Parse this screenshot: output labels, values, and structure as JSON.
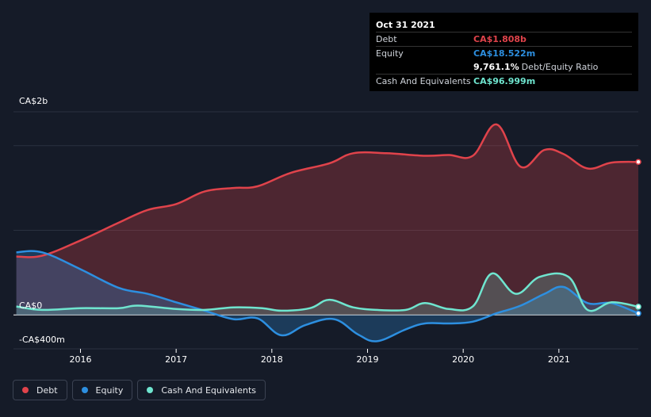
{
  "tooltip": {
    "date": "Oct 31 2021",
    "debt_label": "Debt",
    "debt_value": "CA$1.808b",
    "equity_label": "Equity",
    "equity_value": "CA$18.522m",
    "ratio_value": "9,761.1%",
    "ratio_label": "Debt/Equity Ratio",
    "cash_label": "Cash And Equivalents",
    "cash_value": "CA$96.999m"
  },
  "legend": [
    {
      "label": "Debt",
      "color": "#e0434b"
    },
    {
      "label": "Equity",
      "color": "#2d8fe0"
    },
    {
      "label": "Cash And Equivalents",
      "color": "#6fe5cf"
    }
  ],
  "chart_data": {
    "type": "area",
    "y_tick_labels": [
      "CA$2b",
      "CA$0",
      "-CA$400m"
    ],
    "y_ticks": [
      2000,
      0,
      -400
    ],
    "ylim": [
      -400,
      2400
    ],
    "xlim": [
      2015.3,
      2021.83
    ],
    "x_tick_labels": [
      "2016",
      "2017",
      "2018",
      "2019",
      "2020",
      "2021"
    ],
    "x_ticks": [
      2016,
      2017,
      2018,
      2019,
      2020,
      2021
    ],
    "grid": true,
    "legend_position": "bottom-left",
    "colors": {
      "debt": "#e0434b",
      "equity": "#2d8fe0",
      "cash": "#6fe5cf"
    },
    "series": [
      {
        "name": "Debt",
        "x": [
          2015.33,
          2015.6,
          2016.0,
          2016.4,
          2016.7,
          2017.0,
          2017.3,
          2017.6,
          2017.85,
          2018.2,
          2018.6,
          2018.85,
          2019.2,
          2019.6,
          2019.85,
          2020.1,
          2020.35,
          2020.6,
          2020.85,
          2021.05,
          2021.3,
          2021.55,
          2021.83
        ],
        "values": [
          690,
          700,
          880,
          1090,
          1240,
          1310,
          1460,
          1500,
          1520,
          1680,
          1790,
          1910,
          1910,
          1880,
          1890,
          1880,
          2250,
          1750,
          1950,
          1900,
          1730,
          1800,
          1808
        ]
      },
      {
        "name": "Equity",
        "x": [
          2015.33,
          2015.6,
          2016.0,
          2016.4,
          2016.7,
          2017.0,
          2017.3,
          2017.6,
          2017.85,
          2018.1,
          2018.35,
          2018.65,
          2018.9,
          2019.1,
          2019.4,
          2019.6,
          2019.85,
          2020.1,
          2020.35,
          2020.6,
          2020.85,
          2021.05,
          2021.3,
          2021.55,
          2021.83
        ],
        "values": [
          740,
          740,
          540,
          320,
          250,
          150,
          50,
          -50,
          -40,
          -240,
          -120,
          -50,
          -230,
          -310,
          -170,
          -100,
          -100,
          -80,
          20,
          110,
          250,
          330,
          140,
          140,
          18.5
        ]
      },
      {
        "name": "Cash And Equivalents",
        "x": [
          2015.33,
          2015.6,
          2016.0,
          2016.4,
          2016.6,
          2017.0,
          2017.3,
          2017.6,
          2017.9,
          2018.1,
          2018.4,
          2018.6,
          2018.85,
          2019.1,
          2019.4,
          2019.6,
          2019.85,
          2020.1,
          2020.3,
          2020.55,
          2020.8,
          2021.1,
          2021.3,
          2021.55,
          2021.83
        ],
        "values": [
          100,
          60,
          80,
          80,
          110,
          70,
          60,
          90,
          80,
          50,
          80,
          180,
          90,
          60,
          60,
          140,
          70,
          100,
          490,
          250,
          450,
          450,
          60,
          150,
          97
        ]
      }
    ]
  }
}
